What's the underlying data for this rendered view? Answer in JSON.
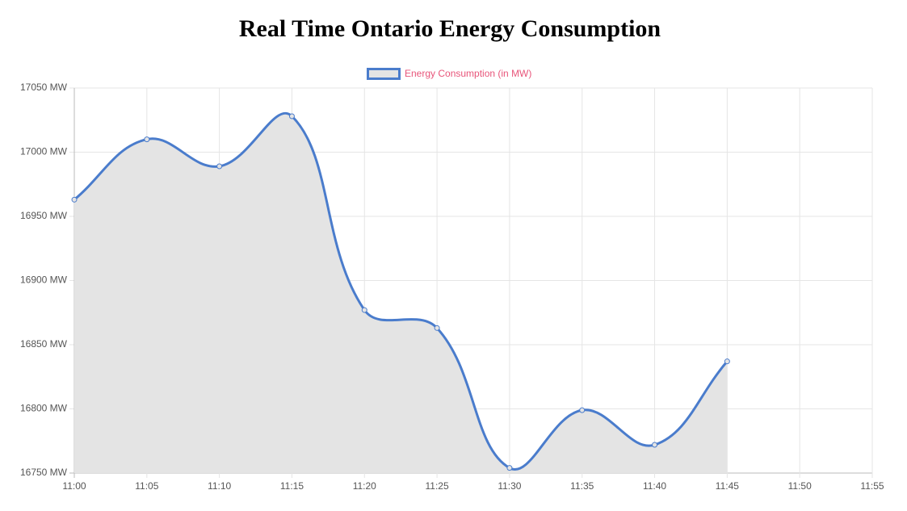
{
  "chart_data": {
    "type": "line",
    "title": "Real Time Ontario Energy Consumption",
    "categories": [
      "11:00",
      "11:05",
      "11:10",
      "11:15",
      "11:20",
      "11:25",
      "11:30",
      "11:35",
      "11:40",
      "11:45",
      "11:50",
      "11:55"
    ],
    "series": [
      {
        "name": "Energy Consumption (in MW)",
        "color": "#4a7ccc",
        "fill": "#e4e4e4",
        "legend_text_color": "#e8557a",
        "values": [
          16963,
          17010,
          16989,
          17028,
          16877,
          16863,
          16754,
          16799,
          16772,
          16837,
          null,
          null
        ]
      }
    ],
    "ylim": [
      16750,
      17050
    ],
    "yticks": [
      {
        "value": 16750,
        "label": "16750 MW"
      },
      {
        "value": 16800,
        "label": "16800 MW"
      },
      {
        "value": 16850,
        "label": "16850 MW"
      },
      {
        "value": 16900,
        "label": "16900 MW"
      },
      {
        "value": 16950,
        "label": "16950 MW"
      },
      {
        "value": 17000,
        "label": "17000 MW"
      },
      {
        "value": 17050,
        "label": "17050 MW"
      }
    ],
    "grid": true,
    "legend": "top"
  }
}
